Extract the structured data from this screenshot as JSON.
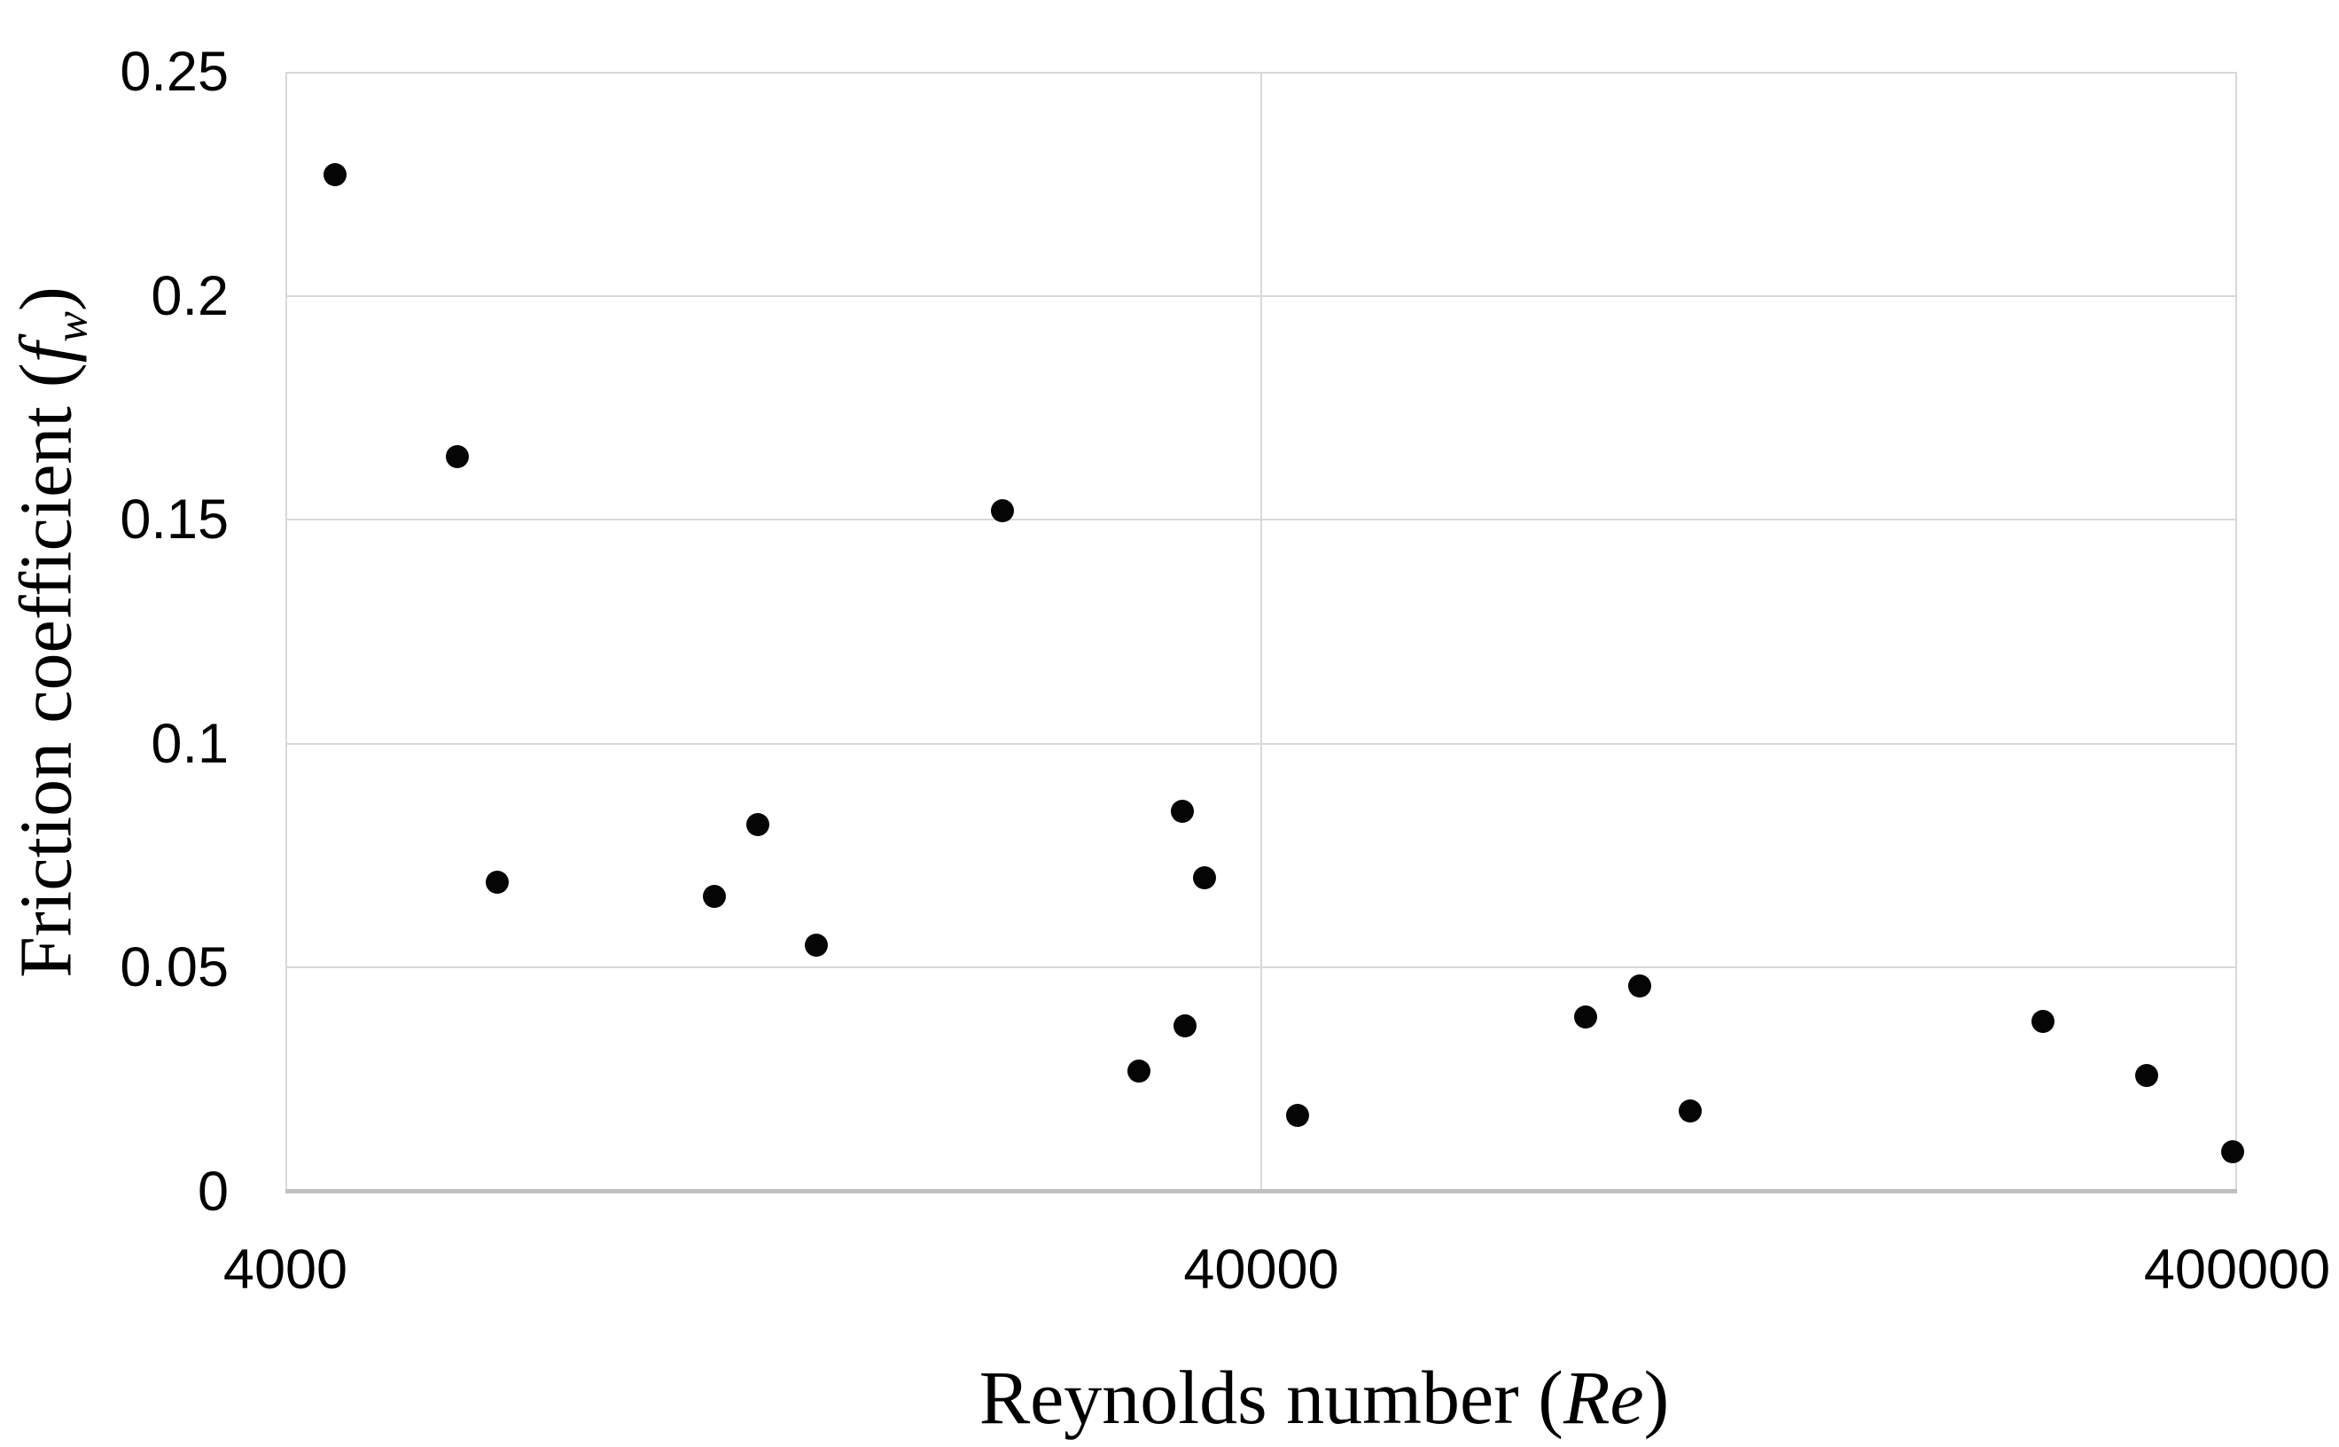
{
  "chart_data": {
    "type": "scatter",
    "title": "",
    "xlabel": "Reynolds number (Re)",
    "ylabel": "Friction coefficient (fw)",
    "xlabel_parts": {
      "prefix": "Reynolds number (",
      "italic": "Re",
      "suffix": ")"
    },
    "ylabel_parts": {
      "prefix": "Friction coefficient (",
      "italic": "f",
      "sub": "w",
      "suffix": ")"
    },
    "x_axis": {
      "scale": "log",
      "min": 4000,
      "max": 400000,
      "ticks": [
        4000,
        40000,
        400000
      ],
      "tick_labels": [
        "4000",
        "40000",
        "400000"
      ],
      "gridlines": [
        40000
      ]
    },
    "y_axis": {
      "scale": "linear",
      "min": 0,
      "max": 0.25,
      "ticks": [
        0,
        0.05,
        0.1,
        0.15,
        0.2,
        0.25
      ],
      "tick_labels": [
        "0",
        "0.05",
        "0.1",
        "0.15",
        "0.2",
        "0.25"
      ],
      "gridlines": [
        0.05,
        0.1,
        0.15,
        0.2
      ]
    },
    "grid": true,
    "legend": null,
    "points": [
      {
        "re": 4500,
        "fw": 0.227
      },
      {
        "re": 6000,
        "fw": 0.164
      },
      {
        "re": 6600,
        "fw": 0.069
      },
      {
        "re": 11000,
        "fw": 0.066
      },
      {
        "re": 12200,
        "fw": 0.082
      },
      {
        "re": 14000,
        "fw": 0.055
      },
      {
        "re": 21700,
        "fw": 0.152
      },
      {
        "re": 30000,
        "fw": 0.027
      },
      {
        "re": 33200,
        "fw": 0.085
      },
      {
        "re": 33400,
        "fw": 0.037
      },
      {
        "re": 35000,
        "fw": 0.07
      },
      {
        "re": 43600,
        "fw": 0.017
      },
      {
        "re": 86000,
        "fw": 0.039
      },
      {
        "re": 97600,
        "fw": 0.046
      },
      {
        "re": 110000,
        "fw": 0.018
      },
      {
        "re": 253000,
        "fw": 0.038
      },
      {
        "re": 323000,
        "fw": 0.026
      },
      {
        "re": 396000,
        "fw": 0.009
      }
    ]
  },
  "colors": {
    "background": "#ffffff",
    "gridline": "#d9d9d9",
    "axis_line": "#c0c0c0",
    "marker": "#050505",
    "text": "#000000"
  }
}
